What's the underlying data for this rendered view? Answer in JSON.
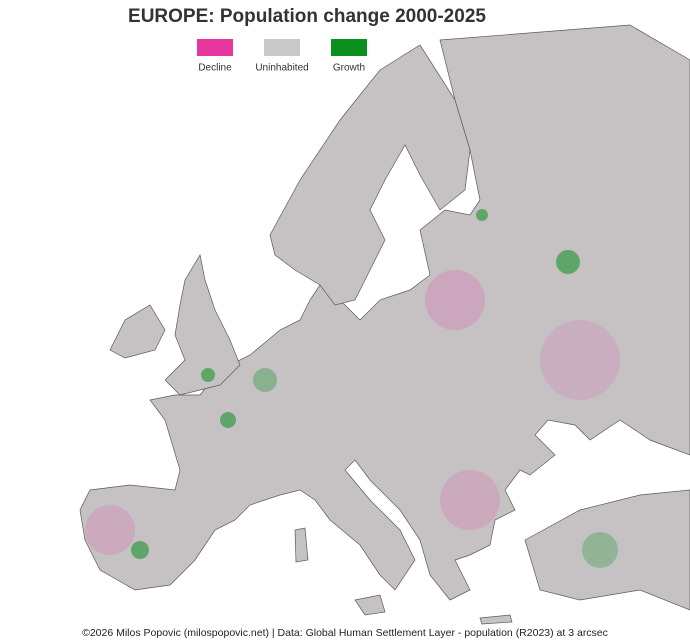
{
  "title": "EUROPE: Population change 2000-2025",
  "legend": [
    {
      "label": "Decline",
      "color": "#e8369f"
    },
    {
      "label": "Uninhabited",
      "color": "#c9c9c9"
    },
    {
      "label": "Growth",
      "color": "#0b8f1f"
    }
  ],
  "caption": "©2026 Milos Popovic (milospopovic.net) | Data: Global Human Settlement Layer - population (R2023) at 3 arcsec"
}
